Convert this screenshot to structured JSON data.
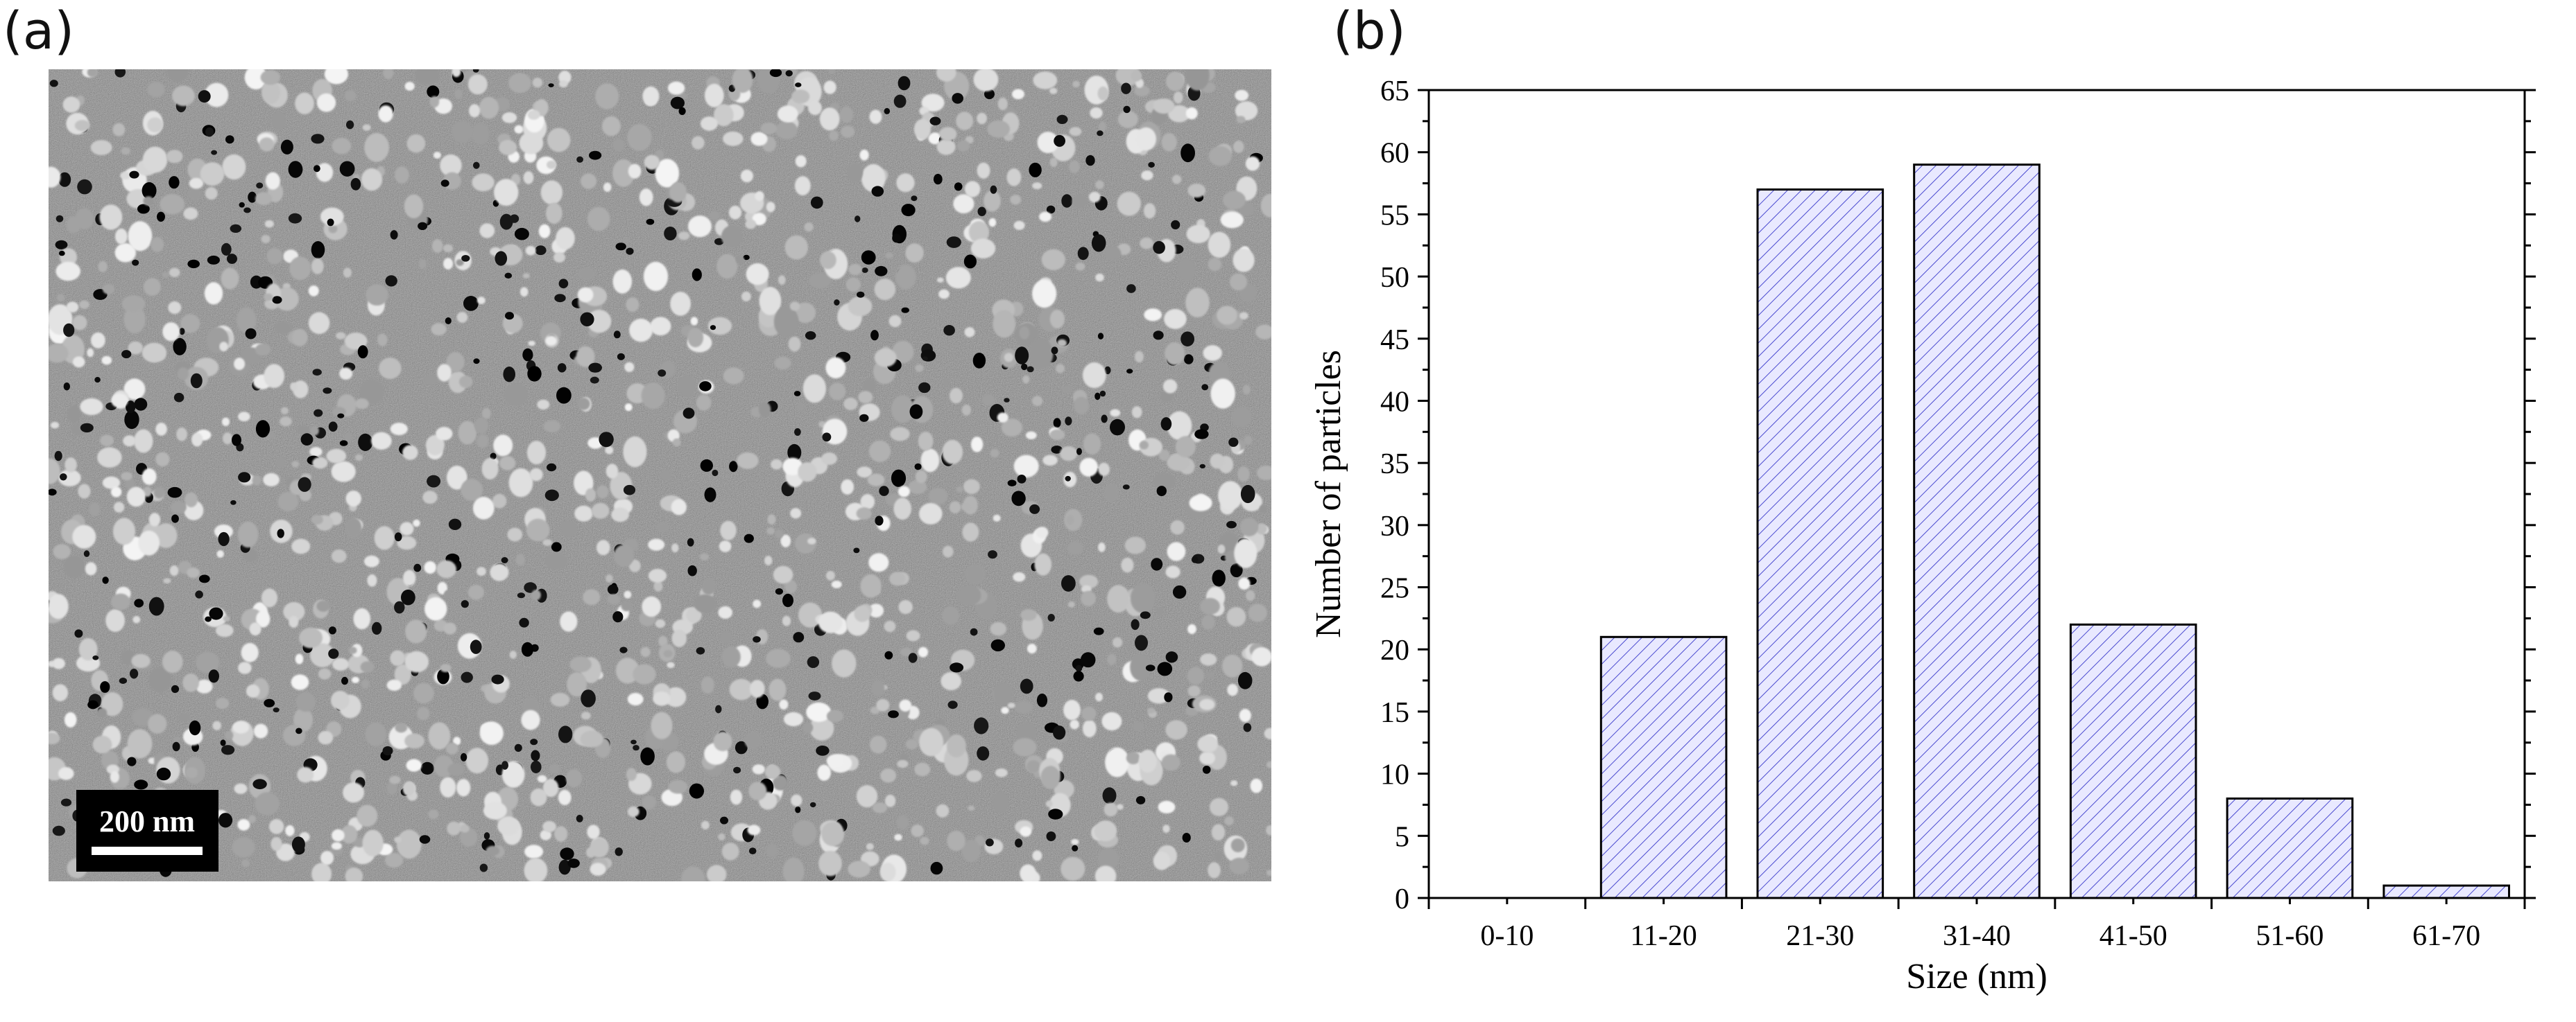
{
  "panels": {
    "a_label": "(a)",
    "b_label": "(b)"
  },
  "micrograph": {
    "scale_bar_label": "200 nm"
  },
  "colors": {
    "bar_fill": "#e9e9ff",
    "hatch": "#4a4ad0",
    "axis": "#000000"
  },
  "chart_data": {
    "type": "bar",
    "title": "",
    "xlabel": "Size (nm)",
    "ylabel": "Number of particles",
    "categories": [
      "0-10",
      "11-20",
      "21-30",
      "31-40",
      "41-50",
      "51-60",
      "61-70"
    ],
    "values": [
      0,
      21,
      57,
      59,
      22,
      8,
      1
    ],
    "ylim": [
      0,
      65
    ],
    "yticks": [
      0,
      5,
      10,
      15,
      20,
      25,
      30,
      35,
      40,
      45,
      50,
      55,
      60,
      65
    ],
    "grid": false,
    "legend": "none"
  }
}
